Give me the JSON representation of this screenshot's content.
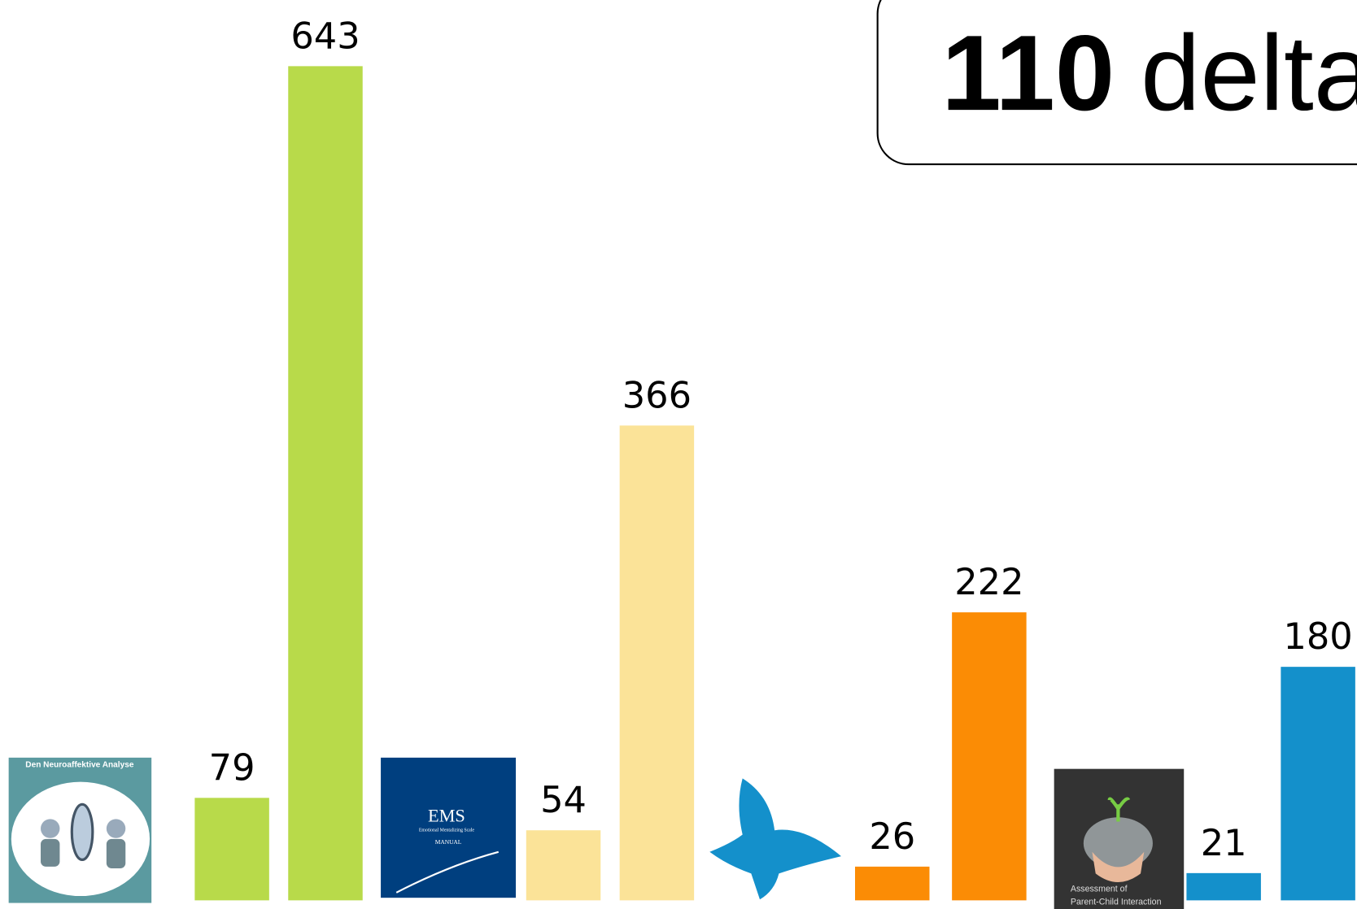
{
  "chart_data": {
    "type": "bar",
    "headline": {
      "number": "110",
      "text": "delta"
    },
    "values": [
      79,
      643,
      54,
      366,
      26,
      222,
      21,
      180
    ],
    "colors": [
      "#b8da4a",
      "#b8da4a",
      "#fbe398",
      "#fbe398",
      "#fb8c05",
      "#fb8c05",
      "#1490cb",
      "#1490cb"
    ],
    "ylim": [
      0,
      694
    ],
    "thumbnails": [
      {
        "title": "Den Neuroaffektive Analyse"
      },
      {
        "title": "EMS",
        "subtitle": "Emotional Mentalizing Scale",
        "note": "MANUAL"
      },
      {
        "title": "Assessment of",
        "subtitle": "Parent-Child Interaction"
      }
    ]
  }
}
